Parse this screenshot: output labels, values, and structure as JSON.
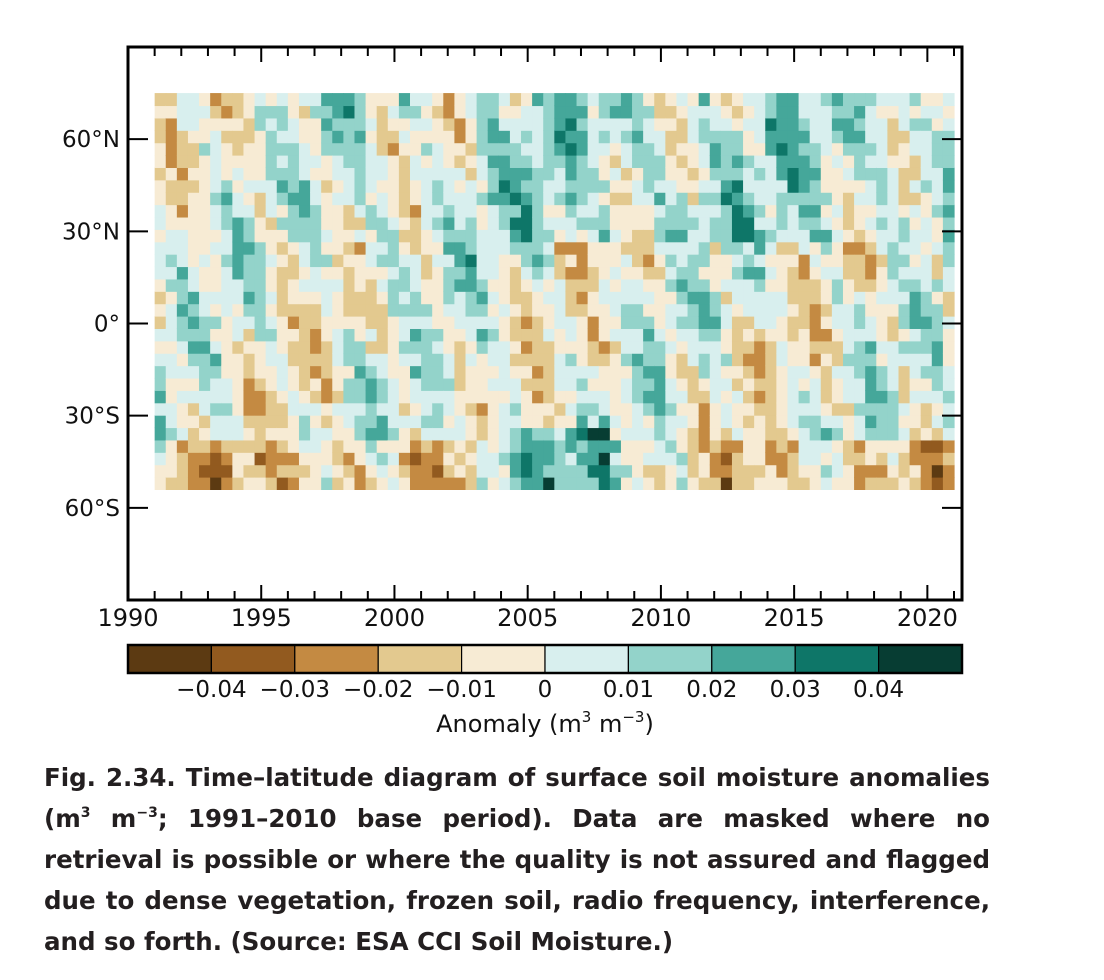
{
  "chart_data": {
    "type": "heatmap",
    "title": "",
    "xlabel": "",
    "ylabel": "",
    "xlim": [
      1990,
      2021.3
    ],
    "ylim": [
      -90,
      90
    ],
    "x_tick_labels": [
      {
        "value": 1990,
        "label": "1990"
      },
      {
        "value": 1995,
        "label": "1995"
      },
      {
        "value": 2000,
        "label": "2000"
      },
      {
        "value": 2005,
        "label": "2005"
      },
      {
        "value": 2010,
        "label": "2010"
      },
      {
        "value": 2015,
        "label": "2015"
      },
      {
        "value": 2020,
        "label": "2020"
      }
    ],
    "y_tick_labels": [
      {
        "value": 60,
        "label": "60°N"
      },
      {
        "value": 30,
        "label": "30°N"
      },
      {
        "value": 0,
        "label": "0°"
      },
      {
        "value": -30,
        "label": "30°S"
      },
      {
        "value": -60,
        "label": "60°S"
      }
    ],
    "data_extent": {
      "x": [
        1991,
        2021
      ],
      "lat": [
        -54,
        75
      ]
    },
    "colorbar": {
      "label_text": "Anomaly (m",
      "label_exp1": "3",
      "label_mid": " m",
      "label_exp2": "−3",
      "label_end": ")",
      "colors": [
        "#5c3a12",
        "#925a1f",
        "#c48a42",
        "#e3c98f",
        "#f7ebd4",
        "#d8efee",
        "#93d3ca",
        "#45a79a",
        "#0e7668",
        "#073d33"
      ],
      "tick_labels": [
        {
          "value": -0.04,
          "label": "−0.04"
        },
        {
          "value": -0.03,
          "label": "−0.03"
        },
        {
          "value": -0.02,
          "label": "−0.02"
        },
        {
          "value": -0.01,
          "label": "−0.01"
        },
        {
          "value": 0,
          "label": "0"
        },
        {
          "value": 0.01,
          "label": "0.01"
        },
        {
          "value": 0.02,
          "label": "0.02"
        },
        {
          "value": 0.03,
          "label": "0.03"
        },
        {
          "value": 0.04,
          "label": "0.04"
        }
      ]
    }
  },
  "caption": {
    "bold_lead": "Fig. 2.34. Time–latitude diagram of surface soil moisture anomalies (m",
    "sup1": "3",
    "mid": " m",
    "sup2": "−3",
    "rest": "; 1991–2010 base period). Data are masked where no retrieval is possible or where the quality is not assured and flagged due to dense vegetation, frozen soil, radio frequency, interference, and so forth. (Source: ESA CCI Soil Moisture.)"
  }
}
